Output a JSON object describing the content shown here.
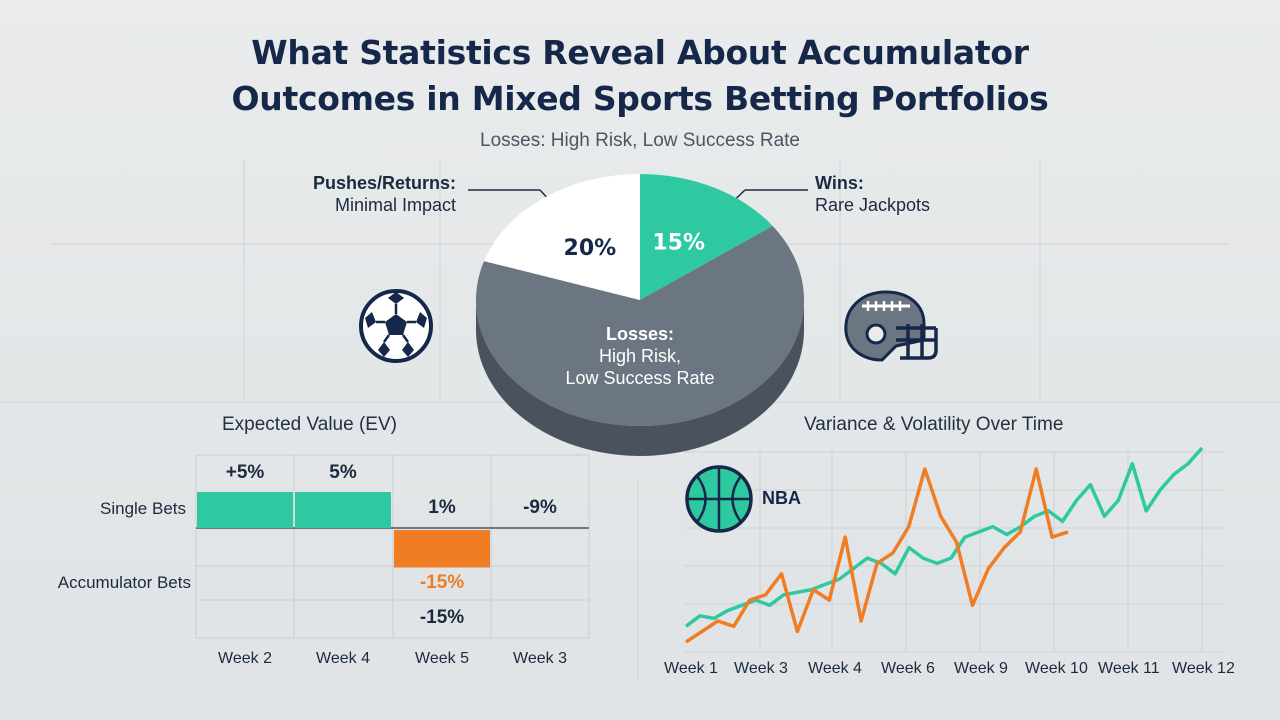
{
  "title_line1": "What Statistics Reveal About Accumulator",
  "title_line2": "Outcomes in Mixed Sports Betting Portfolios",
  "subtitle": "Losses: High Risk, Low Success Rate",
  "icons": [
    "soccer-ball-icon",
    "football-helmet-icon",
    "basketball-icon"
  ],
  "colors": {
    "accent": "#2ec9a1",
    "loss": "#6b7682",
    "loss_side": "#4a535d",
    "white": "#ffffff",
    "orange": "#f07d24",
    "navy": "#15284a"
  },
  "chart_data": [
    {
      "type": "pie",
      "slices": [
        {
          "label": "Wins",
          "value": 15,
          "display": "15%",
          "color": "#2ec9a1",
          "callout_head": "Wins:",
          "callout_sub": "Rare Jackpots"
        },
        {
          "label": "Losses",
          "value": 65,
          "display": "",
          "color": "#6b7682",
          "callout_head": "Losses:",
          "callout_sub1": "High Risk,",
          "callout_sub2": "Low Success Rate"
        },
        {
          "label": "Pushes/Returns",
          "value": 20,
          "display": "20%",
          "color": "#ffffff",
          "callout_head": "Pushes/Returns:",
          "callout_sub": "Minimal Impact"
        }
      ]
    },
    {
      "type": "bar",
      "title": "Expected Value (EV)",
      "categories": [
        "Week 2",
        "Week 4",
        "Week 5",
        "Week 3"
      ],
      "series": [
        {
          "name": "Single Bets",
          "values": [
            5,
            5,
            1,
            -9
          ],
          "labels": [
            "+5%",
            "5%",
            "1%",
            "-9%"
          ]
        },
        {
          "name": "Accumulator Bets",
          "values": [
            0,
            0,
            -15,
            0
          ],
          "labels": [
            "",
            "",
            "-15%",
            ""
          ],
          "extra_label": "-15%"
        }
      ]
    },
    {
      "type": "line",
      "title": "Variance & Volatility Over Time",
      "tag": "NBA",
      "x_labels": [
        "Week 1",
        "Week 3",
        "Week 4",
        "Week 6",
        "Week 9",
        "Week 10",
        "Week 11",
        "Week 12"
      ],
      "series": [
        {
          "color": "#2ec9a1",
          "values": [
            3,
            5,
            4.5,
            6,
            7,
            8,
            7,
            9,
            9.5,
            10,
            11,
            12,
            14,
            16,
            15,
            13,
            18,
            16,
            15,
            16,
            20,
            21,
            22,
            20.5,
            22,
            24,
            25,
            23,
            27,
            30,
            24,
            27,
            34,
            25,
            29,
            32,
            34,
            37
          ]
        },
        {
          "color": "#f07d24",
          "values": [
            0,
            2,
            4,
            3,
            8,
            9,
            13,
            2,
            10,
            8,
            20,
            4,
            15,
            17,
            22,
            33,
            24,
            19,
            7,
            14,
            18,
            21,
            33,
            20,
            21
          ]
        }
      ]
    }
  ]
}
